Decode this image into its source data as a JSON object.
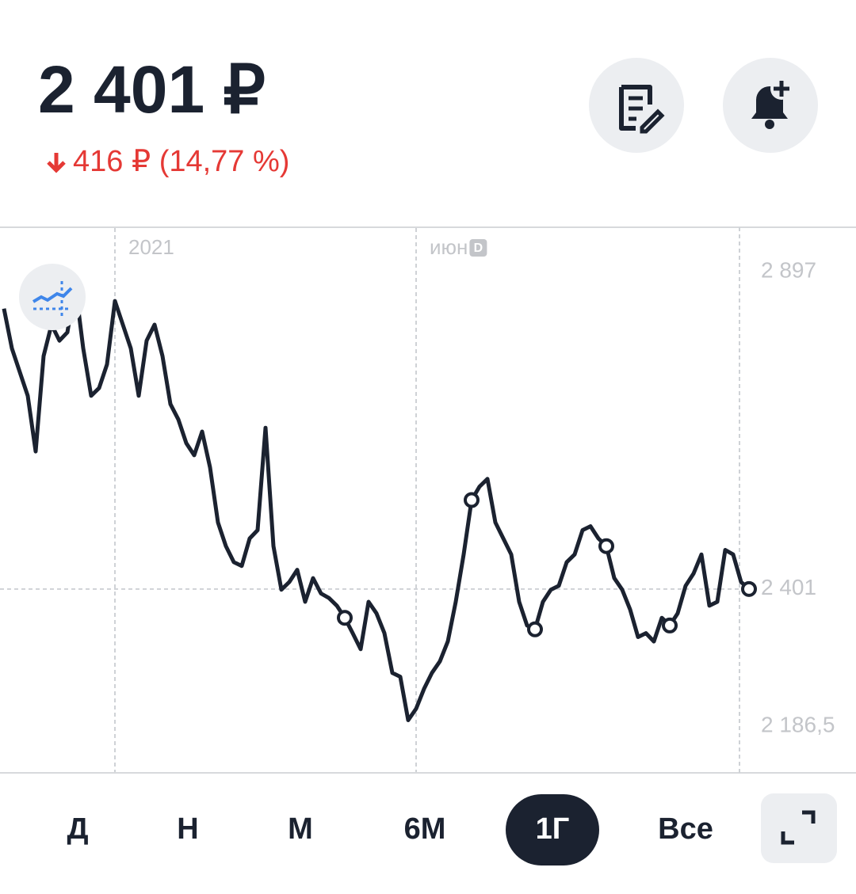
{
  "header": {
    "price": "2 401 ₽",
    "change": "416 ₽ (14,77 %)"
  },
  "marker_badge": "D",
  "periods": [
    "Д",
    "Н",
    "М",
    "6М",
    "1Г",
    "Все"
  ],
  "selected_period": 4,
  "chart_data": {
    "type": "line",
    "color": "#1b2230",
    "categories": [
      null,
      null,
      null,
      null,
      null,
      null,
      null,
      null,
      null,
      null,
      null,
      null,
      null,
      null,
      "2021",
      null,
      null,
      null,
      null,
      null,
      null,
      null,
      null,
      null,
      null,
      null,
      null,
      null,
      null,
      null,
      null,
      null,
      null,
      null,
      null,
      null,
      null,
      null,
      null,
      null,
      null,
      null,
      null,
      null,
      null,
      null,
      null,
      null,
      null,
      null,
      null,
      null,
      "июн",
      null,
      null,
      null,
      null,
      null,
      null,
      null,
      null,
      null,
      null,
      null,
      null,
      null,
      null,
      null,
      null,
      null,
      null,
      null,
      null,
      null,
      null,
      null,
      null,
      null,
      null,
      null,
      null,
      null,
      null,
      null,
      null,
      null,
      null,
      null,
      null,
      null,
      null,
      null,
      null,
      null,
      null
    ],
    "values": [
      2839,
      2777,
      2740,
      2703,
      2616,
      2765,
      2814,
      2789,
      2802,
      2876,
      2777,
      2703,
      2715,
      2752,
      2851,
      2814,
      2777,
      2703,
      2789,
      2814,
      2765,
      2690,
      2666,
      2629,
      2610,
      2647,
      2591,
      2505,
      2468,
      2443,
      2437,
      2480,
      2493,
      2653,
      2468,
      2400,
      2412,
      2431,
      2381,
      2418,
      2394,
      2387,
      2375,
      2356,
      2332,
      2307,
      2381,
      2363,
      2332,
      2270,
      2264,
      2196,
      2214,
      2245,
      2270,
      2288,
      2319,
      2381,
      2455,
      2540,
      2561,
      2573,
      2505,
      2480,
      2455,
      2381,
      2344,
      2338,
      2381,
      2400,
      2406,
      2443,
      2455,
      2493,
      2499,
      2480,
      2468,
      2418,
      2400,
      2369,
      2326,
      2332,
      2319,
      2356,
      2344,
      2363,
      2406,
      2425,
      2455,
      2375,
      2381,
      2462,
      2455,
      2412,
      2401
    ],
    "ylim": [
      2115,
      2965
    ],
    "yticks": [
      {
        "value": 2897,
        "label": "2 897"
      },
      {
        "value": 2401,
        "label": "2 401"
      },
      {
        "value": 2186.5,
        "label": "2 186,5"
      }
    ]
  }
}
